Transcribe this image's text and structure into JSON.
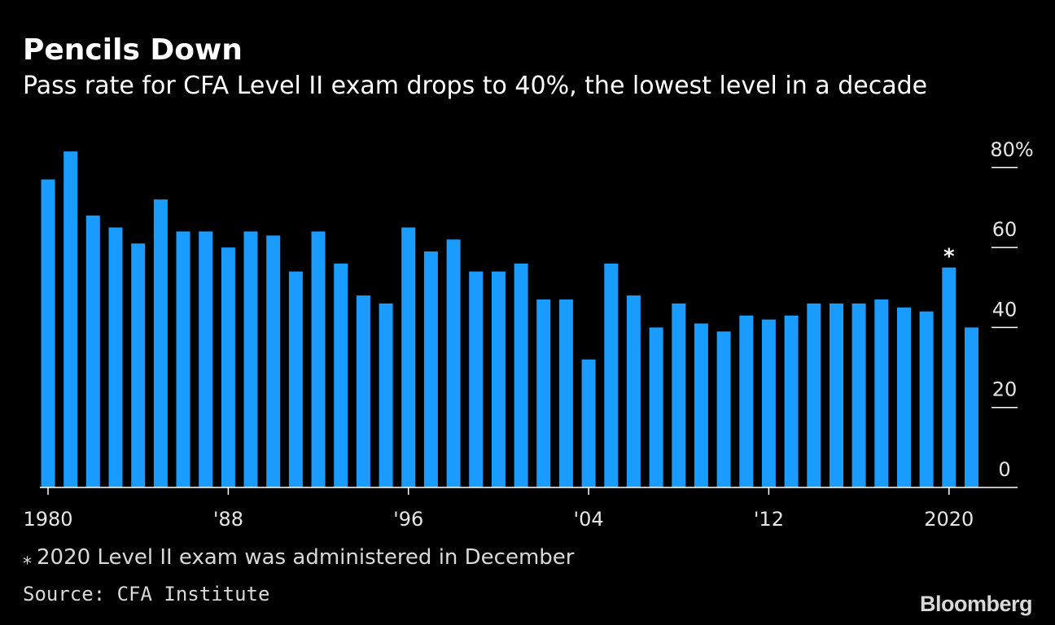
{
  "header": {
    "title": "Pencils Down",
    "subtitle": "Pass rate for CFA Level II exam drops to 40%, the lowest level in a decade"
  },
  "footer": {
    "note_marker": "⁎",
    "note": "2020 Level II exam was administered in December",
    "source": "Source: CFA Institute",
    "brand": "Bloomberg"
  },
  "colors": {
    "background": "#000000",
    "bar": "#1a9cff",
    "text": "#ffffff",
    "muted_text": "#d9d9d9",
    "axis": "#ffffff"
  },
  "chart_data": {
    "type": "bar",
    "title": "Pencils Down",
    "subtitle": "Pass rate for CFA Level II exam drops to 40%, the lowest level in a decade",
    "xlabel": "",
    "ylabel": "",
    "ylim": [
      0,
      85
    ],
    "yticks": [
      0,
      20,
      40,
      60,
      80
    ],
    "ytick_labels": [
      "0",
      "20",
      "40",
      "60",
      "80%"
    ],
    "y_axis_side": "right",
    "xtick_years": [
      1980,
      1988,
      1996,
      2004,
      2012,
      2020
    ],
    "xtick_labels": [
      "1980",
      "'88",
      "'96",
      "'04",
      "'12",
      "2020"
    ],
    "annotation": {
      "year": 2020,
      "text": "⁎"
    },
    "categories": [
      1980,
      1981,
      1982,
      1983,
      1984,
      1985,
      1986,
      1987,
      1988,
      1989,
      1990,
      1991,
      1992,
      1993,
      1994,
      1995,
      1996,
      1997,
      1998,
      1999,
      2000,
      2001,
      2002,
      2003,
      2004,
      2005,
      2006,
      2007,
      2008,
      2009,
      2010,
      2011,
      2012,
      2013,
      2014,
      2015,
      2016,
      2017,
      2018,
      2019,
      2020,
      2021
    ],
    "values": [
      77,
      84,
      68,
      65,
      61,
      72,
      64,
      64,
      60,
      64,
      63,
      54,
      64,
      56,
      48,
      46,
      65,
      59,
      62,
      54,
      54,
      56,
      47,
      47,
      32,
      56,
      48,
      40,
      46,
      41,
      39,
      43,
      42,
      43,
      46,
      46,
      46,
      47,
      45,
      44,
      55,
      40
    ]
  }
}
